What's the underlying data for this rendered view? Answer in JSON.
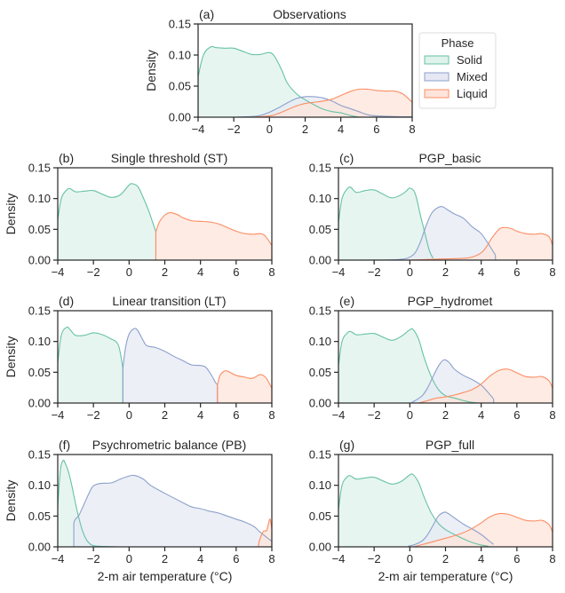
{
  "chart_data": {
    "type": "area",
    "shared": {
      "xlabel": "2-m air temperature (°C)",
      "ylabel": "Density",
      "xlim": [
        -4,
        8
      ],
      "ylim": [
        0,
        0.15
      ],
      "xticks": [
        -4,
        -2,
        0,
        2,
        4,
        6,
        8
      ],
      "xtick_labels": [
        "−4",
        "−2",
        "0",
        "2",
        "4",
        "6",
        "8"
      ],
      "yticks": [
        0,
        0.05,
        0.1,
        0.15
      ],
      "ytick_labels": [
        "0.00",
        "0.05",
        "0.10",
        "0.15"
      ],
      "grid": false
    },
    "colors": {
      "Solid": {
        "line": "#66c2a5",
        "fill": "#dff2ec"
      },
      "Mixed": {
        "line": "#8da0cb",
        "fill": "#e6e9f3"
      },
      "Liquid": {
        "line": "#fc8d62",
        "fill": "#fee4da"
      }
    },
    "legend": {
      "title": "Phase",
      "entries": [
        "Solid",
        "Mixed",
        "Liquid"
      ],
      "placement": "right of panel (a)"
    },
    "panels": [
      {
        "id": "a",
        "label": "(a)",
        "title": "Observations",
        "series": [
          {
            "name": "Solid",
            "x": [
              -4,
              -3.7,
              -3.3,
              -3,
              -2.5,
              -2,
              -1.5,
              -1,
              -0.5,
              0,
              0.3,
              0.7,
              1,
              1.5,
              2,
              2.5,
              3,
              3.5,
              4,
              4.5,
              5
            ],
            "y": [
              0.065,
              0.1,
              0.113,
              0.112,
              0.111,
              0.111,
              0.106,
              0.101,
              0.101,
              0.104,
              0.097,
              0.075,
              0.055,
              0.038,
              0.028,
              0.02,
              0.013,
              0.009,
              0.007,
              0.003,
              0
            ]
          },
          {
            "name": "Mixed",
            "x": [
              -2,
              -1,
              -0.5,
              0,
              0.5,
              1,
              1.5,
              2,
              2.5,
              3,
              3.5,
              4,
              4.5,
              5,
              5.5,
              6,
              7,
              8
            ],
            "y": [
              0,
              0.001,
              0.003,
              0.008,
              0.015,
              0.023,
              0.03,
              0.033,
              0.033,
              0.031,
              0.026,
              0.019,
              0.014,
              0.009,
              0.004,
              0.002,
              0.001,
              0.0005
            ]
          },
          {
            "name": "Liquid",
            "x": [
              -1,
              0,
              0.5,
              1,
              1.5,
              2,
              2.5,
              3,
              3.5,
              4,
              4.5,
              5,
              5.5,
              6,
              6.5,
              7,
              7.5,
              8
            ],
            "y": [
              0,
              0.002,
              0.006,
              0.012,
              0.018,
              0.022,
              0.024,
              0.026,
              0.029,
              0.035,
              0.041,
              0.045,
              0.045,
              0.043,
              0.042,
              0.042,
              0.037,
              0.024
            ]
          }
        ]
      },
      {
        "id": "b",
        "label": "(b)",
        "title": "Single threshold (ST)",
        "series": [
          {
            "name": "Solid",
            "x": [
              -4,
              -3.8,
              -3.5,
              -3.3,
              -3,
              -2.5,
              -2,
              -1.5,
              -1,
              -0.5,
              0,
              0.2,
              0.5,
              0.8,
              1.1,
              1.3,
              1.5
            ],
            "y": [
              0.065,
              0.1,
              0.114,
              0.116,
              0.111,
              0.112,
              0.113,
              0.107,
              0.102,
              0.106,
              0.122,
              0.124,
              0.119,
              0.101,
              0.08,
              0.063,
              0.046
            ]
          },
          {
            "name": "Liquid",
            "x": [
              1.5,
              1.7,
              2,
              2.3,
              2.7,
              3,
              3.5,
              4,
              4.5,
              5,
              5.5,
              6,
              6.5,
              7,
              7.3,
              7.6,
              8
            ],
            "y": [
              0.046,
              0.062,
              0.073,
              0.077,
              0.074,
              0.069,
              0.064,
              0.063,
              0.062,
              0.059,
              0.053,
              0.047,
              0.043,
              0.042,
              0.043,
              0.04,
              0.024
            ]
          }
        ]
      },
      {
        "id": "c",
        "label": "(c)",
        "title": "PGP_basic",
        "series": [
          {
            "name": "Solid",
            "x": [
              -4,
              -3.8,
              -3.5,
              -3.3,
              -3,
              -2.5,
              -2,
              -1.5,
              -1,
              -0.5,
              -0.2,
              0,
              0.3,
              0.6,
              0.9,
              1.1,
              1.3
            ],
            "y": [
              0.06,
              0.1,
              0.116,
              0.118,
              0.11,
              0.113,
              0.114,
              0.107,
              0.101,
              0.106,
              0.112,
              0.117,
              0.108,
              0.072,
              0.037,
              0.015,
              0.003
            ]
          },
          {
            "name": "Mixed",
            "x": [
              -3,
              -1,
              -0.3,
              0,
              0.3,
              0.6,
              0.9,
              1.2,
              1.5,
              1.8,
              2.1,
              2.5,
              3,
              3.5,
              4,
              4.5,
              4.8
            ],
            "y": [
              0,
              0.0005,
              0.002,
              0.005,
              0.012,
              0.03,
              0.055,
              0.075,
              0.084,
              0.087,
              0.082,
              0.075,
              0.068,
              0.054,
              0.043,
              0.022,
              0.008
            ]
          },
          {
            "name": "Liquid",
            "x": [
              0,
              1,
              2,
              3,
              3.5,
              4,
              4.3,
              4.6,
              5,
              5.3,
              5.7,
              6,
              6.5,
              7,
              7.4,
              7.8,
              8
            ],
            "y": [
              0,
              0.001,
              0.002,
              0.003,
              0.005,
              0.012,
              0.022,
              0.036,
              0.05,
              0.053,
              0.051,
              0.047,
              0.043,
              0.042,
              0.043,
              0.038,
              0.024
            ]
          }
        ]
      },
      {
        "id": "d",
        "label": "(d)",
        "title": "Linear transition (LT)",
        "series": [
          {
            "name": "Solid",
            "x": [
              -4,
              -3.8,
              -3.5,
              -3.3,
              -3,
              -2.5,
              -2,
              -1.5,
              -1,
              -0.8,
              -0.6,
              -0.45,
              -0.35
            ],
            "y": [
              0.065,
              0.11,
              0.123,
              0.119,
              0.11,
              0.11,
              0.114,
              0.111,
              0.104,
              0.101,
              0.094,
              0.075,
              0.056
            ]
          },
          {
            "name": "Mixed",
            "x": [
              -0.35,
              -0.2,
              0,
              0.3,
              0.5,
              0.8,
              1,
              1.5,
              2,
              2.5,
              3,
              3.5,
              4,
              4.3,
              4.6,
              4.85,
              4.95
            ],
            "y": [
              0.056,
              0.09,
              0.112,
              0.121,
              0.117,
              0.101,
              0.093,
              0.09,
              0.084,
              0.076,
              0.069,
              0.062,
              0.061,
              0.058,
              0.046,
              0.033,
              0.03
            ]
          },
          {
            "name": "Liquid",
            "x": [
              4.95,
              5.1,
              5.3,
              5.5,
              6,
              6.5,
              6.8,
              7,
              7.3,
              7.5,
              7.7,
              8
            ],
            "y": [
              0.03,
              0.045,
              0.051,
              0.052,
              0.045,
              0.042,
              0.04,
              0.041,
              0.046,
              0.045,
              0.04,
              0.024
            ]
          }
        ]
      },
      {
        "id": "e",
        "label": "(e)",
        "title": "PGP_hydromet",
        "series": [
          {
            "name": "Solid",
            "x": [
              -4,
              -3.8,
              -3.5,
              -3.3,
              -3,
              -2.5,
              -2,
              -1.5,
              -1,
              -0.5,
              0,
              0.2,
              0.5,
              0.8,
              1.2,
              1.6,
              2,
              2.5,
              3,
              3.5,
              4
            ],
            "y": [
              0.06,
              0.1,
              0.114,
              0.116,
              0.111,
              0.112,
              0.113,
              0.107,
              0.102,
              0.108,
              0.119,
              0.119,
              0.103,
              0.074,
              0.043,
              0.022,
              0.012,
              0.008,
              0.004,
              0.001,
              0
            ]
          },
          {
            "name": "Mixed",
            "x": [
              0.1,
              0.3,
              0.7,
              1,
              1.3,
              1.6,
              1.9,
              2.2,
              2.5,
              3,
              3.5,
              4,
              4.3,
              4.6,
              4.7
            ],
            "y": [
              0.001,
              0.004,
              0.012,
              0.025,
              0.043,
              0.06,
              0.07,
              0.066,
              0.055,
              0.045,
              0.038,
              0.029,
              0.02,
              0.01,
              0.006
            ]
          },
          {
            "name": "Liquid",
            "x": [
              0.5,
              1,
              1.5,
              2,
              2.5,
              3,
              3.5,
              4,
              4.5,
              5,
              5.5,
              6,
              6.5,
              7,
              7.4,
              7.8,
              8
            ],
            "y": [
              0,
              0.004,
              0.008,
              0.01,
              0.013,
              0.017,
              0.022,
              0.031,
              0.044,
              0.053,
              0.055,
              0.049,
              0.043,
              0.042,
              0.043,
              0.036,
              0.024
            ]
          }
        ]
      },
      {
        "id": "f",
        "label": "(f)",
        "title": "Psychrometric balance (PB)",
        "series": [
          {
            "name": "Solid",
            "x": [
              -4,
              -3.85,
              -3.7,
              -3.6,
              -3.4,
              -3.2,
              -3,
              -2.8,
              -2.6,
              -2.4,
              -2.2,
              -2,
              -1.6,
              -1,
              -0.6
            ],
            "y": [
              0.065,
              0.125,
              0.14,
              0.137,
              0.122,
              0.098,
              0.07,
              0.045,
              0.025,
              0.012,
              0.005,
              0.002,
              0.0008,
              0.0003,
              0
            ]
          },
          {
            "name": "Mixed",
            "x": [
              -3.1,
              -3.1,
              -2.8,
              -2.5,
              -2.2,
              -2,
              -1.6,
              -1,
              -0.5,
              0,
              0.3,
              0.8,
              1.2,
              2,
              3,
              3.5,
              4,
              4.5,
              5,
              5.5,
              6,
              6.5,
              7,
              7.3,
              7.6,
              8
            ],
            "y": [
              0,
              0.038,
              0.052,
              0.071,
              0.09,
              0.099,
              0.103,
              0.104,
              0.11,
              0.115,
              0.116,
              0.11,
              0.1,
              0.087,
              0.072,
              0.065,
              0.062,
              0.058,
              0.055,
              0.05,
              0.045,
              0.04,
              0.033,
              0.025,
              0.018,
              0.009
            ]
          },
          {
            "name": "Liquid",
            "x": [
              7.25,
              7.3,
              7.5,
              7.6,
              7.7,
              7.8,
              7.9,
              8
            ],
            "y": [
              0,
              0.01,
              0.024,
              0.026,
              0.026,
              0.036,
              0.045,
              0.028
            ]
          }
        ]
      },
      {
        "id": "g",
        "label": "(g)",
        "title": "PGP_full",
        "series": [
          {
            "name": "Solid",
            "x": [
              -4,
              -3.8,
              -3.5,
              -3.3,
              -3,
              -2.5,
              -2,
              -1.5,
              -1,
              -0.5,
              0,
              0.2,
              0.5,
              0.8,
              1.2,
              1.6,
              2,
              2.5,
              3,
              3.5,
              4,
              4.4
            ],
            "y": [
              0.06,
              0.1,
              0.114,
              0.115,
              0.11,
              0.112,
              0.113,
              0.107,
              0.102,
              0.106,
              0.117,
              0.117,
              0.104,
              0.081,
              0.055,
              0.038,
              0.028,
              0.02,
              0.013,
              0.007,
              0.003,
              0.001
            ]
          },
          {
            "name": "Mixed",
            "x": [
              -0.1,
              0.3,
              0.7,
              1,
              1.3,
              1.6,
              1.9,
              2.1,
              2.5,
              3,
              3.5,
              4,
              4.3,
              4.6,
              4.7
            ],
            "y": [
              0.001,
              0.004,
              0.01,
              0.02,
              0.035,
              0.05,
              0.056,
              0.055,
              0.047,
              0.037,
              0.029,
              0.02,
              0.013,
              0.006,
              0.004
            ]
          },
          {
            "name": "Liquid",
            "x": [
              0.2,
              1,
              1.5,
              2,
              2.5,
              3,
              3.5,
              4,
              4.5,
              5,
              5.5,
              6,
              6.5,
              7,
              7.4,
              7.8,
              8
            ],
            "y": [
              0,
              0.006,
              0.01,
              0.014,
              0.018,
              0.023,
              0.03,
              0.039,
              0.049,
              0.054,
              0.053,
              0.048,
              0.043,
              0.042,
              0.043,
              0.036,
              0.024
            ]
          }
        ]
      }
    ]
  }
}
